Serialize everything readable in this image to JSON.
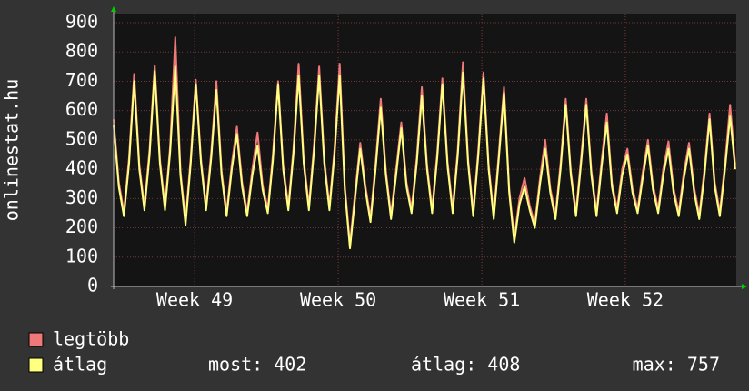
{
  "chart_data": {
    "type": "line",
    "ylabel": "onlinestat.hu",
    "x": [
      0,
      0.25,
      0.5,
      0.75,
      1,
      1.25,
      1.5,
      1.75,
      2,
      2.25,
      2.5,
      2.75,
      3,
      3.25,
      3.5,
      3.75,
      4,
      4.25,
      4.5,
      4.75,
      5,
      5.25,
      5.5,
      5.75,
      6,
      6.25,
      6.5,
      6.75,
      7,
      7.25,
      7.5,
      7.75,
      8,
      8.25,
      8.5,
      8.75,
      9,
      9.25,
      9.5,
      9.75,
      10,
      10.25,
      10.5,
      10.75,
      11,
      11.25,
      11.5,
      11.75,
      12,
      12.25,
      12.5,
      12.75,
      13,
      13.25,
      13.5,
      13.75,
      14,
      14.25,
      14.5,
      14.75,
      15,
      15.25,
      15.5,
      15.75,
      16,
      16.25,
      16.5,
      16.75,
      17,
      17.25,
      17.5,
      17.75,
      18,
      18.25,
      18.5,
      18.75,
      19,
      19.25,
      19.5,
      19.75,
      20,
      20.25,
      20.5,
      20.75,
      21,
      21.25,
      21.5,
      21.75,
      22,
      22.25,
      22.5,
      22.75,
      23,
      23.25,
      23.5,
      23.75,
      24,
      24.25,
      24.5,
      24.75,
      25,
      25.25,
      25.5,
      25.75,
      26,
      26.25,
      26.5,
      26.75,
      27,
      27.25,
      27.5,
      27.75,
      28,
      28.25,
      28.5,
      28.75,
      29,
      29.25,
      29.5,
      29.75,
      30,
      30.25
    ],
    "xlim": [
      0,
      30.3
    ],
    "xticks": [
      {
        "value": 3.94,
        "label": "Week 49"
      },
      {
        "value": 10.93,
        "label": "Week 50"
      },
      {
        "value": 17.92,
        "label": "Week 51"
      },
      {
        "value": 24.9,
        "label": "Week 52"
      }
    ],
    "ylim": [
      0,
      900
    ],
    "yticks": [
      0,
      100,
      200,
      300,
      400,
      500,
      600,
      700,
      800,
      900
    ],
    "grid": true,
    "series": [
      {
        "name": "legtöbb",
        "color": "#f07878",
        "values": [
          570,
          355,
          255,
          440,
          725,
          415,
          275,
          470,
          755,
          435,
          275,
          480,
          850,
          395,
          225,
          440,
          705,
          435,
          275,
          460,
          700,
          395,
          255,
          420,
          545,
          355,
          255,
          400,
          525,
          345,
          265,
          450,
          700,
          415,
          275,
          470,
          760,
          435,
          275,
          480,
          750,
          435,
          275,
          470,
          760,
          345,
          145,
          320,
          490,
          345,
          235,
          420,
          640,
          395,
          245,
          400,
          560,
          355,
          265,
          440,
          680,
          415,
          265,
          460,
          710,
          425,
          265,
          470,
          765,
          435,
          255,
          470,
          730,
          415,
          245,
          460,
          680,
          335,
          165,
          300,
          370,
          275,
          215,
          370,
          500,
          335,
          245,
          420,
          640,
          395,
          255,
          440,
          640,
          395,
          255,
          430,
          590,
          355,
          265,
          400,
          470,
          335,
          265,
          390,
          500,
          345,
          265,
          400,
          495,
          335,
          255,
          390,
          490,
          335,
          245,
          400,
          590,
          355,
          255,
          420,
          620,
          415
        ]
      },
      {
        "name": "átlag",
        "color": "#ffff80",
        "values": [
          550,
          340,
          240,
          420,
          700,
          400,
          260,
          450,
          735,
          420,
          260,
          460,
          750,
          380,
          210,
          420,
          690,
          420,
          260,
          440,
          670,
          380,
          240,
          400,
          520,
          340,
          240,
          380,
          480,
          330,
          250,
          430,
          690,
          400,
          260,
          450,
          720,
          420,
          260,
          460,
          720,
          420,
          260,
          450,
          720,
          330,
          130,
          300,
          470,
          330,
          220,
          400,
          610,
          380,
          230,
          380,
          540,
          340,
          250,
          420,
          650,
          400,
          250,
          440,
          690,
          410,
          250,
          450,
          730,
          420,
          240,
          450,
          710,
          400,
          230,
          440,
          660,
          320,
          150,
          280,
          340,
          260,
          200,
          350,
          470,
          320,
          230,
          400,
          620,
          380,
          240,
          420,
          620,
          380,
          240,
          410,
          560,
          340,
          250,
          380,
          450,
          320,
          250,
          370,
          480,
          330,
          250,
          380,
          470,
          320,
          240,
          370,
          470,
          320,
          230,
          380,
          570,
          340,
          240,
          400,
          580,
          400
        ]
      }
    ],
    "stats": [
      "most: 402",
      "átlag: 408",
      "max: 757"
    ]
  }
}
